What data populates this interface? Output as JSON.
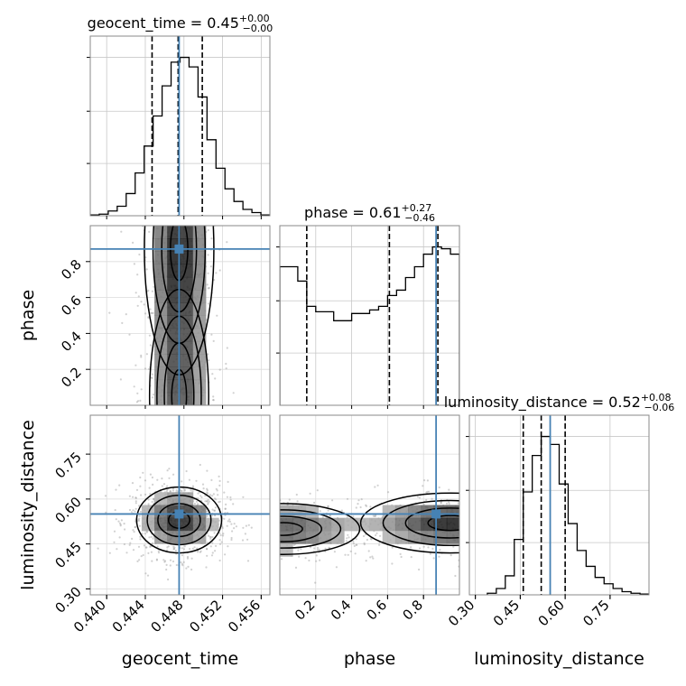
{
  "chart_data": {
    "type": "corner",
    "truth_color": "#4682b4",
    "hist_color": "#000000",
    "parameters": [
      {
        "name": "geocent_time",
        "label": "geocent_time",
        "range": [
          0.4383,
          0.4569
        ],
        "ticks": [
          0.44,
          0.444,
          0.448,
          0.452,
          0.456
        ],
        "tick_labels": [
          "0.440",
          "0.444",
          "0.448",
          "0.452",
          "0.456"
        ],
        "truth": 0.4475,
        "quantiles": [
          0.4447,
          0.4474,
          0.4499
        ],
        "title": {
          "prefix": "geocent_time = 0.45",
          "plus": "+0.00",
          "minus": "−0.00"
        },
        "histogram": {
          "bins_min": 0.4383,
          "bin_width": 0.00093,
          "counts": [
            0.5,
            1,
            3,
            6,
            14,
            27,
            44,
            63,
            82,
            97,
            100,
            94,
            75,
            48,
            30,
            17,
            9,
            4,
            2,
            0.5
          ]
        }
      },
      {
        "name": "phase",
        "label": "phase",
        "range": [
          0.0,
          1.0
        ],
        "ticks": [
          0.2,
          0.4,
          0.6,
          0.8
        ],
        "tick_labels": [
          "0.2",
          "0.4",
          "0.6",
          "0.8"
        ],
        "truth": 0.87,
        "quantiles": [
          0.15,
          0.61,
          0.88
        ],
        "title": {
          "prefix": "phase = 0.61",
          "plus": "+0.27",
          "minus": "−0.46"
        },
        "histogram": {
          "bins_min": 0.0,
          "bin_width": 0.05,
          "counts": [
            77,
            77,
            69,
            55,
            52,
            52,
            47,
            47,
            51,
            51,
            53,
            55,
            61,
            64,
            71,
            77,
            84,
            88,
            87,
            84
          ]
        }
      },
      {
        "name": "luminosity_distance",
        "label": "luminosity_distance",
        "range": [
          0.28,
          0.88
        ],
        "ticks": [
          0.3,
          0.45,
          0.6,
          0.75
        ],
        "tick_labels": [
          "0.30",
          "0.45",
          "0.60",
          "0.75"
        ],
        "truth": 0.55,
        "quantiles": [
          0.46,
          0.52,
          0.6
        ],
        "title": {
          "prefix": "luminosity_distance = 0.52",
          "plus": "+0.08",
          "minus": "−0.06"
        },
        "histogram": {
          "bins_min": 0.34,
          "bin_width": 0.03,
          "counts": [
            1,
            4,
            12,
            35,
            65,
            88,
            100,
            95,
            70,
            45,
            28,
            18,
            11,
            7,
            4,
            2,
            1,
            0.5
          ]
        }
      }
    ],
    "joint": [
      {
        "x": "geocent_time",
        "y": "phase",
        "peaks": [
          [
            0.4475,
            0.87
          ],
          [
            0.4475,
            0.05
          ]
        ],
        "spread": [
          0.0018,
          0.35
        ]
      },
      {
        "x": "geocent_time",
        "y": "luminosity_distance",
        "peaks": [
          [
            0.4475,
            0.53
          ]
        ],
        "spread": [
          0.0022,
          0.055
        ]
      },
      {
        "x": "phase",
        "y": "luminosity_distance",
        "peaks": [
          [
            0.95,
            0.52
          ],
          [
            0.02,
            0.5
          ]
        ],
        "spread": [
          0.25,
          0.05
        ]
      }
    ]
  }
}
